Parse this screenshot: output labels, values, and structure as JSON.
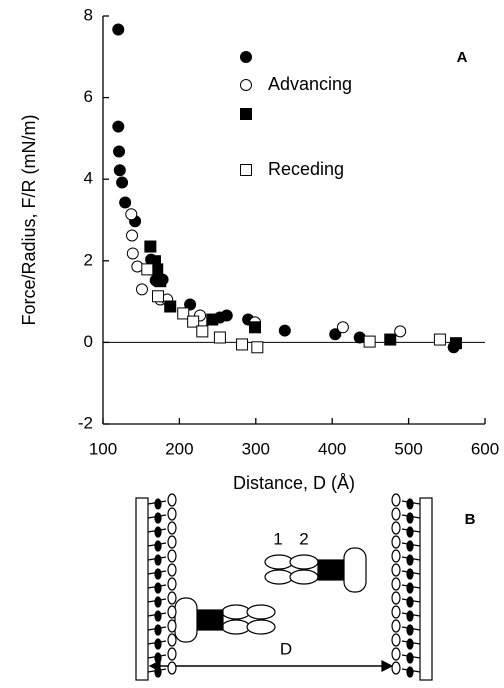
{
  "chart_data": {
    "type": "scatter",
    "xlabel": "Distance, D (Å)",
    "ylabel": "Force/Radius, F/R (mN/m)",
    "annotation": "A",
    "xlim": [
      100,
      600
    ],
    "xticks": [
      100,
      200,
      300,
      400,
      500,
      600
    ],
    "ylim": [
      -2,
      8
    ],
    "yticks": [
      -2,
      0,
      2,
      4,
      6,
      8
    ],
    "reference_line": 0,
    "series": [
      {
        "name": null,
        "color": "#000000",
        "marker": "circle",
        "filled": true,
        "x": [
          120,
          120,
          121,
          122,
          125,
          129,
          142,
          163,
          169,
          178,
          214,
          253,
          262,
          290,
          338,
          404,
          436,
          559
        ],
        "values": [
          7.67,
          5.29,
          4.68,
          4.22,
          3.92,
          3.43,
          2.97,
          2.03,
          1.52,
          1.54,
          0.93,
          0.61,
          0.66,
          0.56,
          0.29,
          0.2,
          0.12,
          -0.12
        ]
      },
      {
        "name": "Advancing",
        "color": "#000000",
        "marker": "circle",
        "filled": false,
        "x": [
          137,
          138,
          139,
          145,
          151,
          162,
          175,
          184,
          227,
          299,
          414,
          489
        ],
        "values": [
          3.14,
          2.62,
          2.18,
          1.86,
          1.3,
          1.79,
          1.05,
          1.05,
          0.66,
          0.49,
          0.37,
          0.27
        ]
      },
      {
        "name": null,
        "color": "#000000",
        "marker": "square",
        "filled": true,
        "x": [
          162,
          168,
          171,
          175,
          188,
          243,
          299,
          476,
          562
        ],
        "values": [
          2.35,
          1.99,
          1.79,
          1.5,
          0.88,
          0.56,
          0.37,
          0.07,
          -0.02
        ]
      },
      {
        "name": "Receding",
        "color": "#000000",
        "marker": "square",
        "filled": false,
        "x": [
          158,
          172,
          205,
          218,
          230,
          253,
          282,
          302,
          449,
          541
        ],
        "values": [
          1.79,
          1.13,
          0.71,
          0.51,
          0.27,
          0.12,
          -0.05,
          -0.12,
          0.02,
          0.07
        ]
      }
    ]
  },
  "diagram": {
    "panel_label": "B",
    "domain_labels": [
      "1",
      "2"
    ],
    "distance_label": "D"
  }
}
